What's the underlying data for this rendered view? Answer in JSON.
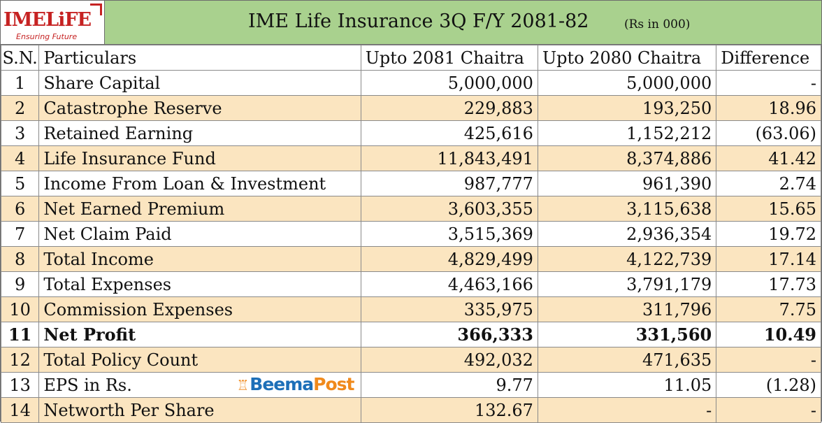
{
  "header": {
    "logo_text": "IMELiFE",
    "logo_tagline": "Ensuring Future",
    "title": "IME Life Insurance 3Q F/Y 2081-82",
    "unit": "(Rs in 000)"
  },
  "columns": {
    "sn": "S.N.",
    "particulars": "Particulars",
    "current": "Upto 2081 Chaitra",
    "previous": "Upto 2080 Chaitra",
    "difference": "Difference"
  },
  "rows": [
    {
      "sn": "1",
      "particulars": "Share Capital",
      "current": "5,000,000",
      "previous": "5,000,000",
      "difference": "-"
    },
    {
      "sn": "2",
      "particulars": "Catastrophe Reserve",
      "current": "229,883",
      "previous": "193,250",
      "difference": "18.96"
    },
    {
      "sn": "3",
      "particulars": "Retained Earning",
      "current": "425,616",
      "previous": "1,152,212",
      "difference": "(63.06)"
    },
    {
      "sn": "4",
      "particulars": "Life Insurance Fund",
      "current": "11,843,491",
      "previous": "8,374,886",
      "difference": "41.42"
    },
    {
      "sn": "5",
      "particulars": "Income From Loan & Investment",
      "current": "987,777",
      "previous": "961,390",
      "difference": "2.74"
    },
    {
      "sn": "6",
      "particulars": "Net Earned Premium",
      "current": "3,603,355",
      "previous": "3,115,638",
      "difference": "15.65"
    },
    {
      "sn": "7",
      "particulars": "Net Claim Paid",
      "current": "3,515,369",
      "previous": "2,936,354",
      "difference": "19.72"
    },
    {
      "sn": "8",
      "particulars": "Total Income",
      "current": "4,829,499",
      "previous": "4,122,739",
      "difference": "17.14"
    },
    {
      "sn": "9",
      "particulars": "Total Expenses",
      "current": "4,463,166",
      "previous": "3,791,179",
      "difference": "17.73"
    },
    {
      "sn": "10",
      "particulars": "Commission Expenses",
      "current": "335,975",
      "previous": "311,796",
      "difference": "7.75"
    },
    {
      "sn": "11",
      "particulars": "Net Profit",
      "current": "366,333",
      "previous": "331,560",
      "difference": "10.49"
    },
    {
      "sn": "12",
      "particulars": "Total Policy Count",
      "current": "492,032",
      "previous": "471,635",
      "difference": "-"
    },
    {
      "sn": "13",
      "particulars": "EPS in Rs.",
      "current": "9.77",
      "previous": "11.05",
      "difference": "(1.28)"
    },
    {
      "sn": "14",
      "particulars": "Networth Per Share",
      "current": "132.67",
      "previous": "-",
      "difference": "-"
    }
  ],
  "watermark": {
    "icon": "beema-building-icon",
    "part1": "Beema",
    "part2": "Post"
  },
  "colors": {
    "header_bg": "#a9d18e",
    "stripe_bg": "#fbe5c0",
    "logo_red": "#c62222",
    "brand_blue": "#1d6fb8",
    "brand_orange": "#f08a1c"
  }
}
